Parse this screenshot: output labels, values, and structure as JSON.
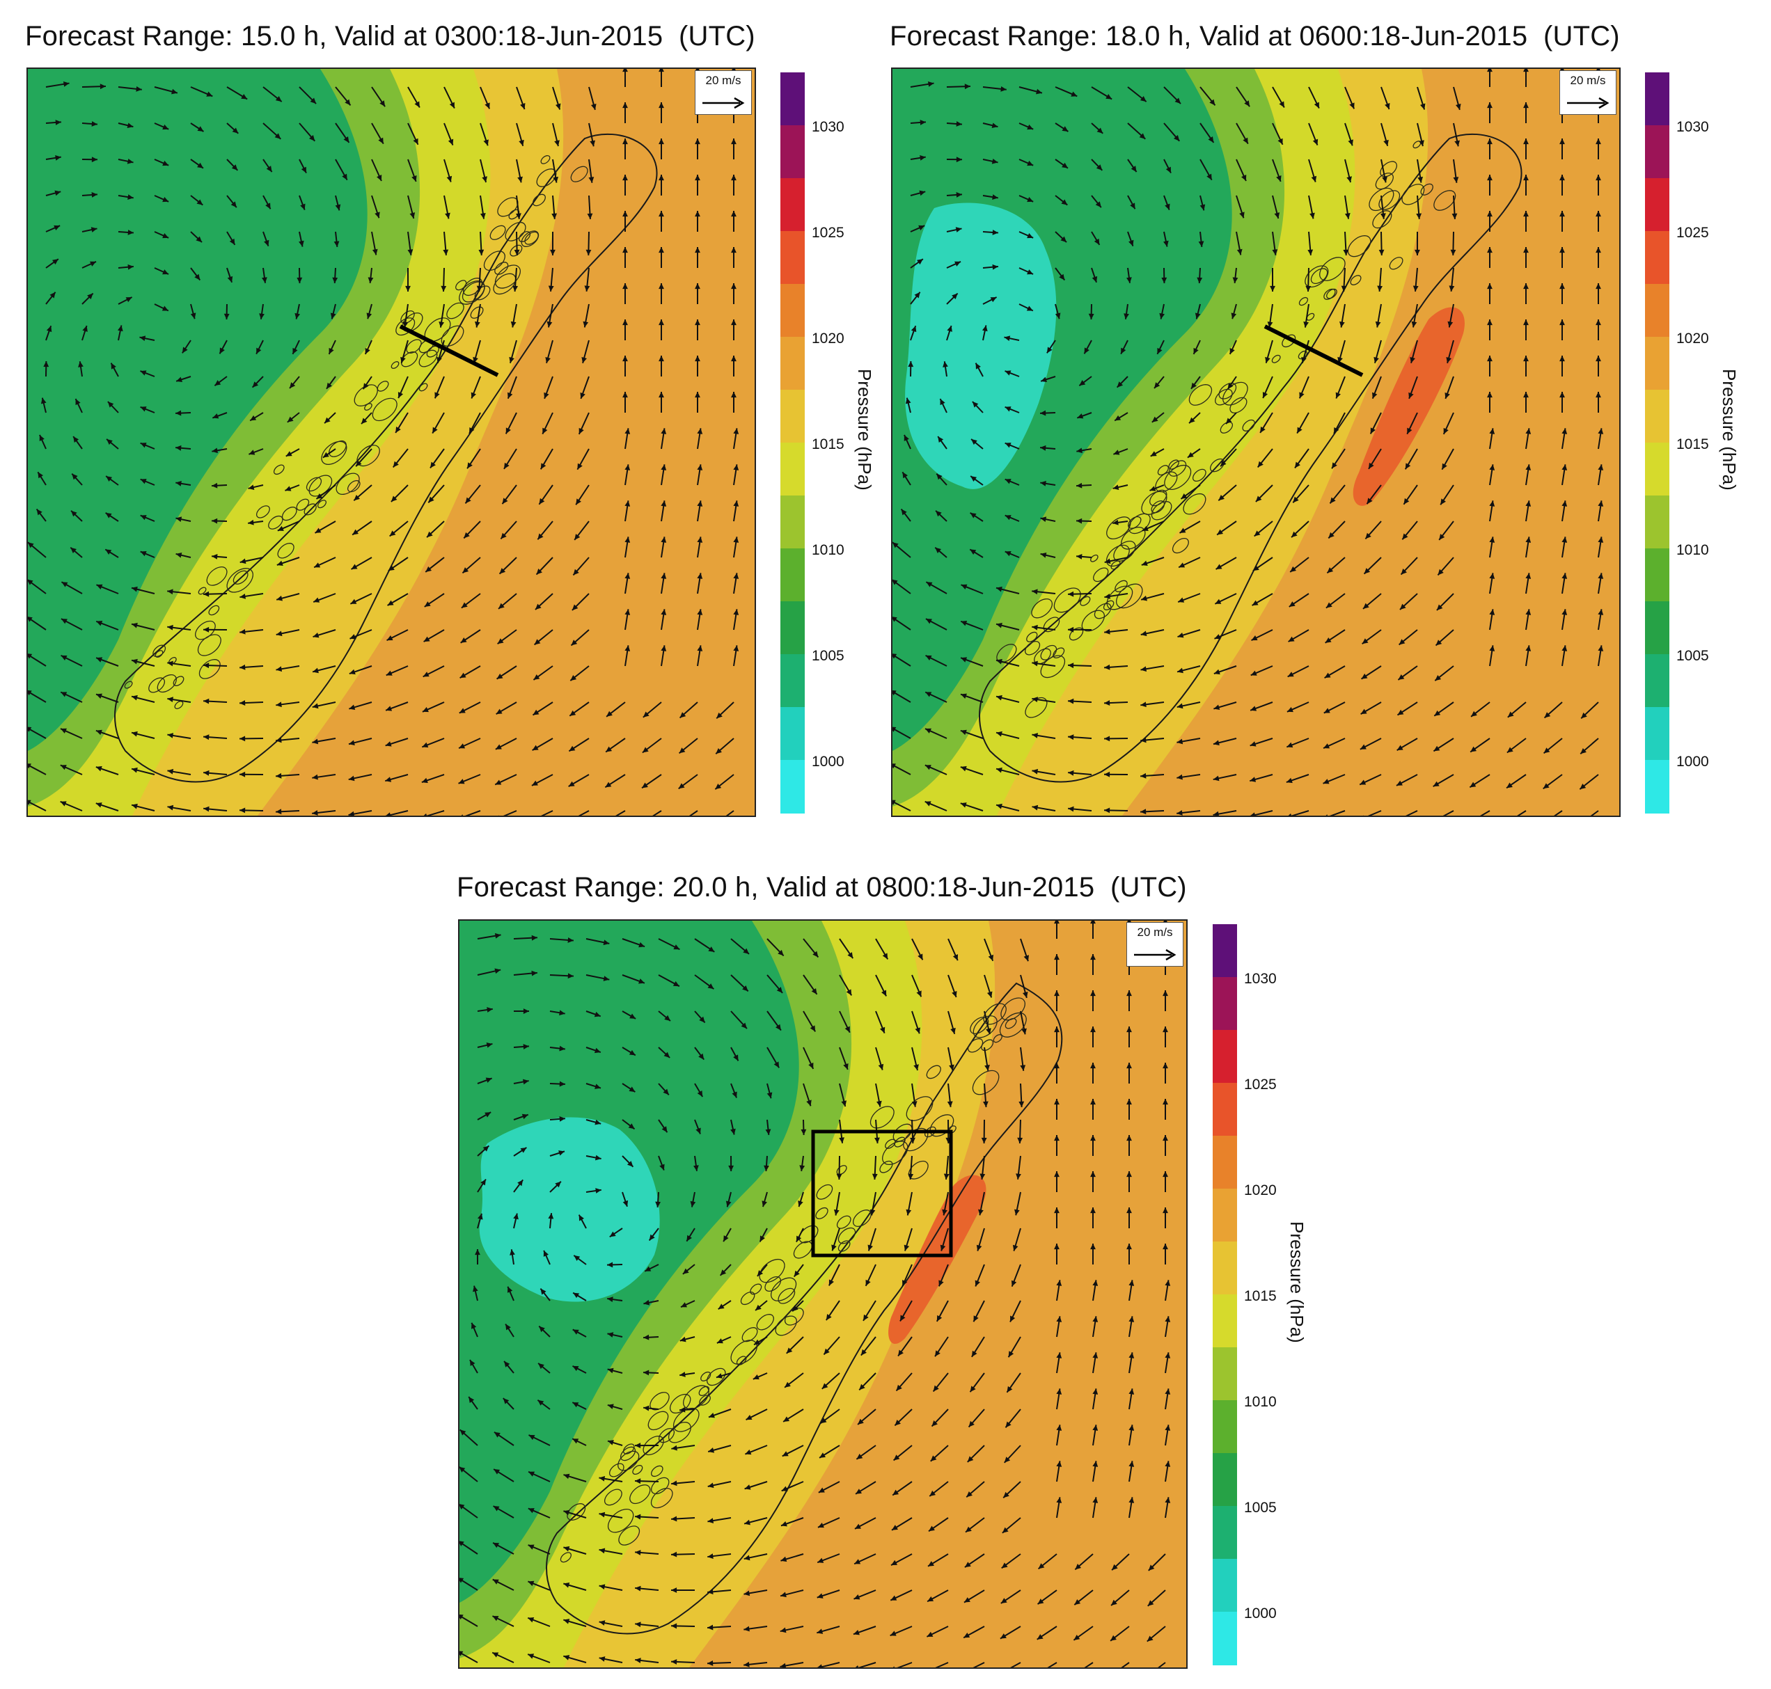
{
  "panels": [
    {
      "id": "p1",
      "title": "Forecast Range: 15.0 h, Valid at 0300:18-Jun-2015",
      "utc": "(UTC)",
      "scale_label": "20 m/s",
      "feature": "cross-section line",
      "colorbar_label": "Pressure (hPa)",
      "colorbar_ticks": [
        "1030",
        "1025",
        "1020",
        "1015",
        "1010",
        "1005",
        "1000"
      ]
    },
    {
      "id": "p2",
      "title": "Forecast Range: 18.0 h, Valid at 0600:18-Jun-2015",
      "utc": "(UTC)",
      "scale_label": "20 m/s",
      "feature": "cross-section line",
      "colorbar_label": "Pressure (hPa)",
      "colorbar_ticks": [
        "1030",
        "1025",
        "1020",
        "1015",
        "1010",
        "1005",
        "1000"
      ]
    },
    {
      "id": "p3",
      "title": "Forecast Range: 20.0 h, Valid at 0800:18-Jun-2015",
      "utc": "(UTC)",
      "scale_label": "20 m/s",
      "feature": "highlight box",
      "colorbar_label": "Pressure (hPa)",
      "colorbar_ticks": [
        "1030",
        "1025",
        "1020",
        "1015",
        "1010",
        "1005",
        "1000"
      ]
    }
  ],
  "colorbar_colors": [
    "#5e1078",
    "#9c1457",
    "#d6202e",
    "#e8542a",
    "#e8822a",
    "#e9a233",
    "#e7c333",
    "#d6da2c",
    "#9cc42e",
    "#5cb02d",
    "#26a246",
    "#1db070",
    "#22d0bd",
    "#2ee8e6"
  ],
  "pressure_colors": {
    "low": "#2fd6b8",
    "low_mid": "#23a85a",
    "mid": "#7fbd36",
    "mid_high": "#d3d92a",
    "high": "#e8c535",
    "higher": "#e6a23a",
    "highest": "#e8652c"
  }
}
